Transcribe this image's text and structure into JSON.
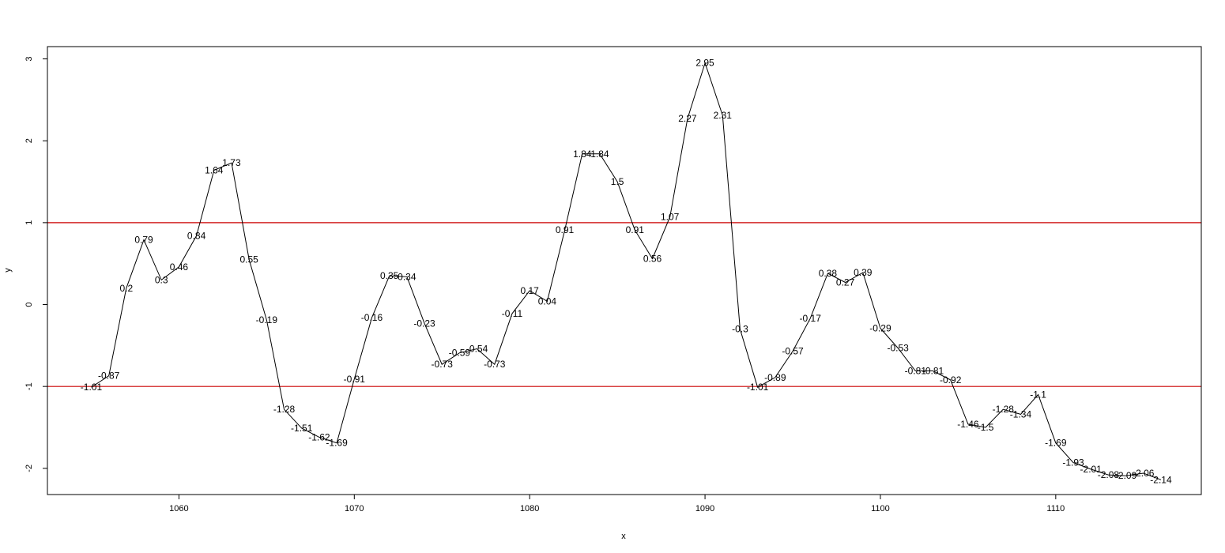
{
  "chart_data": {
    "type": "line",
    "xlabel": "x",
    "ylabel": "y",
    "xlim": [
      1052.5,
      1118.3
    ],
    "ylim": [
      -2.32,
      3.15
    ],
    "x_ticks": [
      1060,
      1070,
      1080,
      1090,
      1100,
      1110
    ],
    "x_tick_labels": [
      "1060",
      "1070",
      "1080",
      "1090",
      "1100",
      "1110"
    ],
    "y_ticks": [
      -2,
      -1,
      0,
      1,
      2,
      3
    ],
    "y_tick_labels": [
      "-2",
      "-1",
      "0",
      "1",
      "2",
      "3"
    ],
    "grid": false,
    "line_color": "#000000",
    "reference_line_color": "#cc0000",
    "reference_lines": [
      1,
      -1
    ],
    "x": [
      1055,
      1056,
      1057,
      1058,
      1059,
      1060,
      1061,
      1062,
      1063,
      1064,
      1065,
      1066,
      1067,
      1068,
      1069,
      1070,
      1071,
      1072,
      1073,
      1074,
      1075,
      1076,
      1077,
      1078,
      1079,
      1080,
      1081,
      1082,
      1083,
      1084,
      1085,
      1086,
      1087,
      1088,
      1089,
      1090,
      1091,
      1092,
      1093,
      1094,
      1095,
      1096,
      1097,
      1098,
      1099,
      1100,
      1101,
      1102,
      1103,
      1104,
      1105,
      1106,
      1107,
      1108,
      1109,
      1110,
      1111,
      1112,
      1113,
      1114,
      1115,
      1116
    ],
    "y": [
      -1.01,
      -0.87,
      0.2,
      0.79,
      0.3,
      0.46,
      0.84,
      1.64,
      1.73,
      0.55,
      -0.19,
      -1.28,
      -1.51,
      -1.62,
      -1.69,
      -0.91,
      -0.16,
      0.35,
      0.34,
      -0.23,
      -0.73,
      -0.59,
      -0.54,
      -0.73,
      -0.11,
      0.17,
      0.04,
      0.91,
      1.84,
      1.84,
      1.5,
      0.91,
      0.56,
      1.07,
      2.27,
      2.95,
      2.31,
      -0.3,
      -1.01,
      -0.89,
      -0.57,
      -0.17,
      0.38,
      0.27,
      0.39,
      -0.29,
      -0.53,
      -0.81,
      -0.81,
      -0.92,
      -1.46,
      -1.5,
      -1.28,
      -1.34,
      -1.1,
      -1.69,
      -1.93,
      -2.01,
      -2.08,
      -2.09,
      -2.06,
      -2.14
    ],
    "labels": [
      "-1.01",
      "-0.87",
      "0.2",
      "0.79",
      "0.3",
      "0.46",
      "0.84",
      "1.64",
      "1.73",
      "0.55",
      "-0.19",
      "-1.28",
      "-1.51",
      "-1.62",
      "-1.69",
      "-0.91",
      "-0.16",
      "0.35",
      "0.34",
      "-0.23",
      "-0.73",
      "-0.59",
      "-0.54",
      "-0.73",
      "-0.11",
      "0.17",
      "0.04",
      "0.91",
      "1.84",
      "1.84",
      "1.5",
      "0.91",
      "0.56",
      "1.07",
      "2.27",
      "2.95",
      "2.31",
      "-0.3",
      "-1.01",
      "-0.89",
      "-0.57",
      "-0.17",
      "0.38",
      "0.27",
      "0.39",
      "-0.29",
      "-0.53",
      "-0.81",
      "-0.81",
      "-0.92",
      "-1.46",
      "-1.5",
      "-1.28",
      "-1.34",
      "-1.1",
      "-1.69",
      "-1.93",
      "-2.01",
      "-2.08",
      "-2.09",
      "-2.06",
      "-2.14"
    ]
  }
}
